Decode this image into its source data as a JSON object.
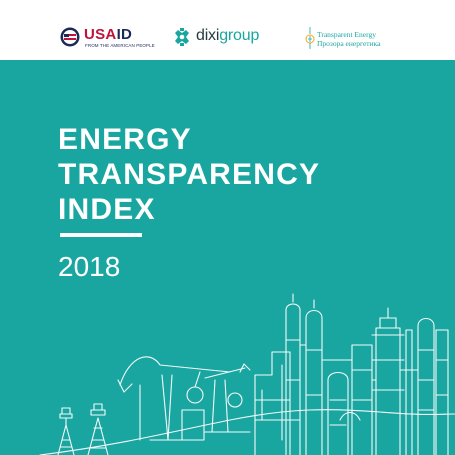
{
  "logos": {
    "usaid": {
      "word_a": "USA",
      "word_b": "ID",
      "tagline": "FROM THE AMERICAN PEOPLE"
    },
    "dixigroup": {
      "word_a": "dixi",
      "word_b": "group"
    },
    "transparent_energy": {
      "line1": "Transparent Energy",
      "line2": "Прозора енергетика"
    }
  },
  "cover": {
    "title_line1": "ENERGY",
    "title_line2": "TRANSPARENCY",
    "title_line3": "INDEX",
    "year": "2018"
  },
  "colors": {
    "teal": "#1aa6a0",
    "usaid_red": "#c2113a",
    "usaid_navy": "#1c2a5a",
    "white": "#ffffff"
  },
  "icons": [
    "usaid-seal-icon",
    "dixigroup-logo-icon",
    "transparent-energy-logo-icon",
    "industrial-skyline-illustration"
  ]
}
